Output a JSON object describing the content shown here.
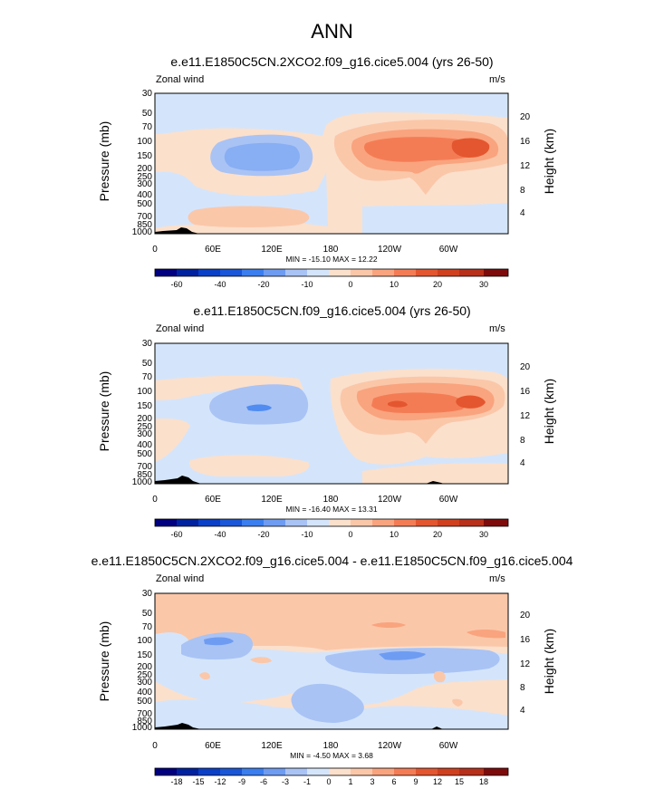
{
  "main_title": "ANN",
  "colors": {
    "neg6": "#000080",
    "neg5": "#0033a0",
    "neg4": "#1a56d8",
    "neg3": "#3a7ef0",
    "neg2": "#6e9cf2",
    "neg1": "#a9c3f5",
    "neg0": "#d4e5fb",
    "pos0": "#fbe0cc",
    "pos1": "#fbc7a9",
    "pos2": "#f9a47e",
    "pos3": "#f47c55",
    "pos4": "#e4562f",
    "pos5": "#b8301a",
    "pos6": "#7e0b0b",
    "terrain": "#000000"
  },
  "chart_data": [
    {
      "type": "heatmap",
      "title": "e.e11.E1850C5CN.2XCO2.f09_g16.cice5.004 (yrs 26-50)",
      "left_label": "Zonal wind",
      "right_label": "m/s",
      "ylabel": "Pressure (mb)",
      "y2label": "Height (km)",
      "pressure_ticks": [
        "30",
        "50",
        "70",
        "100",
        "150",
        "200",
        "250",
        "300",
        "400",
        "500",
        "700",
        "850",
        "1000"
      ],
      "height_ticks": [
        "20",
        "16",
        "12",
        "8",
        "4"
      ],
      "lon_ticks": [
        "0",
        "60E",
        "120E",
        "180",
        "120W",
        "60W"
      ],
      "stats": "MIN = -15.10  MAX =  12.22",
      "colorbar_labels": [
        "-60",
        "-40",
        "-20",
        "-10",
        "0",
        "10",
        "20",
        "30"
      ]
    },
    {
      "type": "heatmap",
      "title": "e.e11.E1850C5CN.f09_g16.cice5.004 (yrs 26-50)",
      "left_label": "Zonal wind",
      "right_label": "m/s",
      "ylabel": "Pressure (mb)",
      "y2label": "Height (km)",
      "pressure_ticks": [
        "30",
        "50",
        "70",
        "100",
        "150",
        "200",
        "250",
        "300",
        "400",
        "500",
        "700",
        "850",
        "1000"
      ],
      "height_ticks": [
        "20",
        "16",
        "12",
        "8",
        "4"
      ],
      "lon_ticks": [
        "0",
        "60E",
        "120E",
        "180",
        "120W",
        "60W"
      ],
      "stats": "MIN = -16.40  MAX =  13.31",
      "colorbar_labels": [
        "-60",
        "-40",
        "-20",
        "-10",
        "0",
        "10",
        "20",
        "30"
      ]
    },
    {
      "type": "heatmap",
      "title": "e.e11.E1850C5CN.2XCO2.f09_g16.cice5.004 - e.e11.E1850C5CN.f09_g16.cice5.004",
      "left_label": "Zonal wind",
      "right_label": "m/s",
      "ylabel": "Pressure (mb)",
      "y2label": "Height (km)",
      "pressure_ticks": [
        "30",
        "50",
        "70",
        "100",
        "150",
        "200",
        "250",
        "300",
        "400",
        "500",
        "700",
        "850",
        "1000"
      ],
      "height_ticks": [
        "20",
        "16",
        "12",
        "8",
        "4"
      ],
      "lon_ticks": [
        "0",
        "60E",
        "120E",
        "180",
        "120W",
        "60W"
      ],
      "stats": "MIN = -4.50  MAX =  3.68",
      "colorbar_labels": [
        "-18",
        "-15",
        "-12",
        "-9",
        "-6",
        "-3",
        "-1",
        "0",
        "1",
        "3",
        "6",
        "9",
        "12",
        "15",
        "18"
      ]
    }
  ]
}
